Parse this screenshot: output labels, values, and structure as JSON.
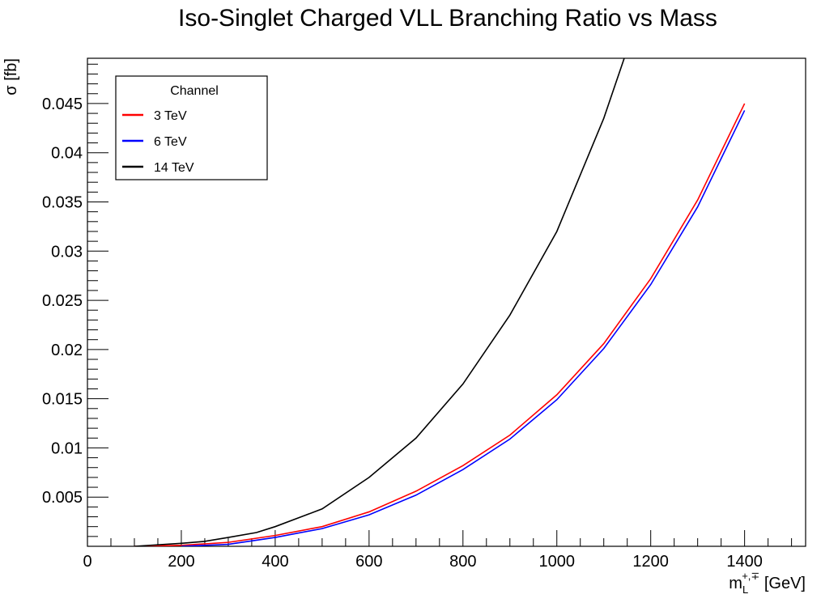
{
  "chart_data": {
    "type": "line",
    "title": "Iso-Singlet Charged VLL Branching Ratio vs Mass",
    "xlabel": "m_L^{+,∓} [GeV]",
    "xlabel_main": "m",
    "xlabel_sub": "L",
    "xlabel_sup": "+,∓",
    "xlabel_unit": " [GeV]",
    "ylabel": "σ [fb]",
    "xlim": [
      0,
      1530
    ],
    "ylim": [
      0,
      0.0496
    ],
    "xticks": [
      0,
      200,
      400,
      600,
      800,
      1000,
      1200,
      1400
    ],
    "xtick_labels": [
      "0",
      "200",
      "400",
      "600",
      "800",
      "1000",
      "1200",
      "1400"
    ],
    "yticks": [
      0.005,
      0.01,
      0.015,
      0.02,
      0.025,
      0.03,
      0.035,
      0.04,
      0.045
    ],
    "ytick_labels": [
      "0.005",
      "0.01",
      "0.015",
      "0.02",
      "0.025",
      "0.03",
      "0.035",
      "0.04",
      "0.045"
    ],
    "grid": false,
    "legend": {
      "title": "Channel",
      "placement": "top-left"
    },
    "series": [
      {
        "name": "3 TeV",
        "color": "#ff0000",
        "x": [
          100,
          200,
          300,
          400,
          500,
          600,
          700,
          800,
          900,
          1000,
          1100,
          1200,
          1300,
          1400
        ],
        "y": [
          0,
          0.0001,
          0.0004,
          0.0011,
          0.002,
          0.0035,
          0.0056,
          0.0082,
          0.0113,
          0.0154,
          0.0206,
          0.0272,
          0.0352,
          0.045
        ]
      },
      {
        "name": "6 TeV",
        "color": "#0000ff",
        "x": [
          200,
          300,
          400,
          500,
          600,
          700,
          800,
          900,
          1000,
          1100,
          1200,
          1300,
          1400
        ],
        "y": [
          0,
          0.0002,
          0.0009,
          0.0018,
          0.0032,
          0.0052,
          0.0078,
          0.0109,
          0.0149,
          0.0201,
          0.0266,
          0.0345,
          0.0443
        ]
      },
      {
        "name": "14 TeV",
        "color": "#000000",
        "x": [
          100,
          200,
          250,
          300,
          360,
          400,
          500,
          600,
          700,
          800,
          900,
          1000,
          1100,
          1150
        ],
        "y": [
          0,
          0.0003,
          0.0005,
          0.0009,
          0.0014,
          0.002,
          0.0038,
          0.007,
          0.011,
          0.0165,
          0.0235,
          0.032,
          0.0435,
          0.0505
        ]
      }
    ]
  }
}
